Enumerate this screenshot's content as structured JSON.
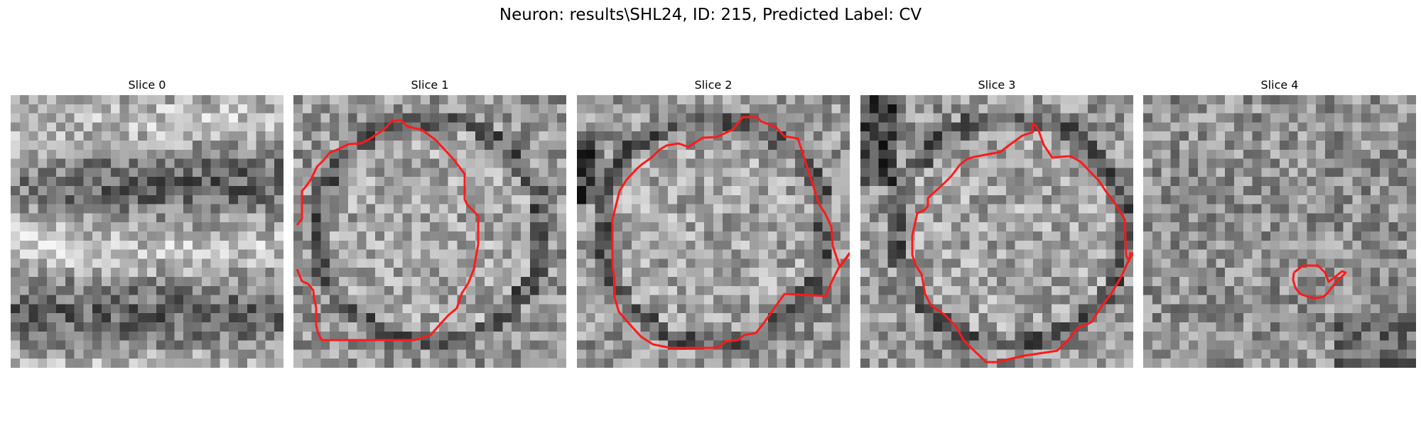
{
  "figure": {
    "title": "Neuron: results\\SHL24, ID: 215, Predicted Label: CV"
  },
  "colors": {
    "contour": "#ff1a1a",
    "background": "#ffffff"
  },
  "panels": [
    {
      "label": "Slice 0",
      "has_contour": false
    },
    {
      "label": "Slice 1",
      "has_contour": true
    },
    {
      "label": "Slice 2",
      "has_contour": true
    },
    {
      "label": "Slice 3",
      "has_contour": true
    },
    {
      "label": "Slice 4",
      "has_contour": true
    }
  ]
}
